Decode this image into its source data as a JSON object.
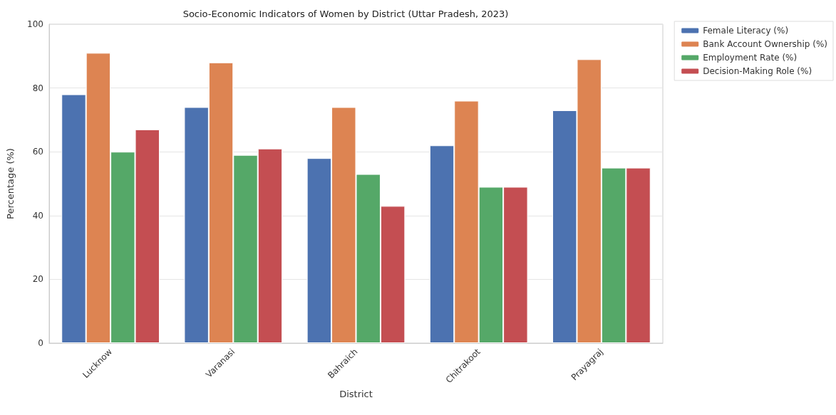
{
  "chart_data": {
    "type": "bar",
    "title": "Socio-Economic Indicators of Women by District (Uttar Pradesh, 2023)",
    "xlabel": "District",
    "ylabel": "Percentage (%)",
    "categories": [
      "Lucknow",
      "Varanasi",
      "Bahraich",
      "Chitrakoot",
      "Prayagraj"
    ],
    "series": [
      {
        "name": "Female Literacy (%)",
        "color": "#4c72b0",
        "values": [
          78,
          74,
          58,
          62,
          73
        ]
      },
      {
        "name": "Bank Account Ownership (%)",
        "color": "#dd8452",
        "values": [
          91,
          88,
          74,
          76,
          89
        ]
      },
      {
        "name": "Employment Rate (%)",
        "color": "#55a868",
        "values": [
          60,
          59,
          53,
          49,
          55
        ]
      },
      {
        "name": "Decision-Making Role (%)",
        "color": "#c44e52",
        "values": [
          67,
          61,
          43,
          49,
          55
        ]
      }
    ],
    "ylim": [
      0,
      100
    ],
    "yticks": [
      0,
      20,
      40,
      60,
      80,
      100
    ],
    "grid": "y",
    "legend": "top right"
  }
}
